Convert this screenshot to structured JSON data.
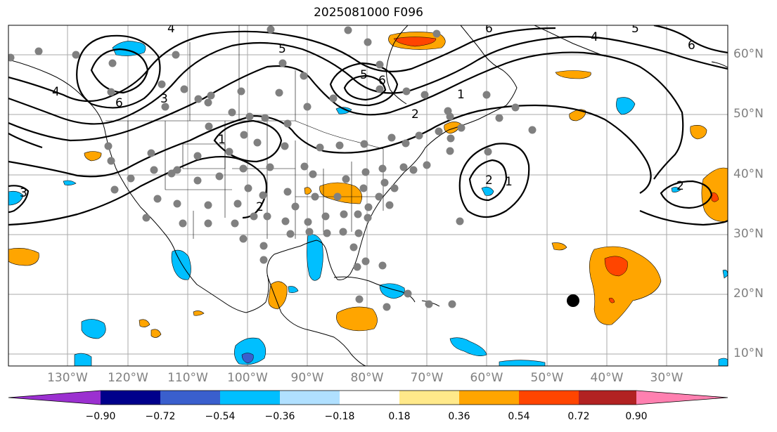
{
  "title": "2025081000 F096",
  "lat_labels": [
    "60°N",
    "50°N",
    "40°N",
    "30°N",
    "20°N",
    "10°N"
  ],
  "lon_labels": [
    "130°W",
    "120°W",
    "110°W",
    "100°W",
    "90°W",
    "80°W",
    "70°W",
    "60°W",
    "50°W",
    "40°W",
    "30°W"
  ],
  "contour_labels": [
    "4",
    "5",
    "6",
    "5",
    "6",
    "6",
    "5",
    "3",
    "4",
    "1",
    "2",
    "2",
    "1",
    "2",
    "1",
    "2",
    "4",
    "3",
    "6"
  ],
  "colorbar": {
    "ticks": [
      "−0.90",
      "−0.72",
      "−0.54",
      "−0.36",
      "−0.18",
      "0.18",
      "0.36",
      "0.54",
      "0.72",
      "0.90"
    ],
    "colors": [
      "#9b30d0",
      "#00008b",
      "#3a5fcd",
      "#00bfff",
      "#b0e0ff",
      "#ffffff",
      "#ffe98a",
      "#ffa500",
      "#ff4500",
      "#b22222",
      "#ff80b0"
    ]
  },
  "colors": {
    "positive_fill": "#ffa500",
    "positive_strong": "#ff4500",
    "negative_fill": "#00bfff",
    "negative_strong": "#3a5fcd",
    "station_dot": "#808080",
    "storm_marker": "#000000",
    "grid": "#aaaaaa"
  }
}
